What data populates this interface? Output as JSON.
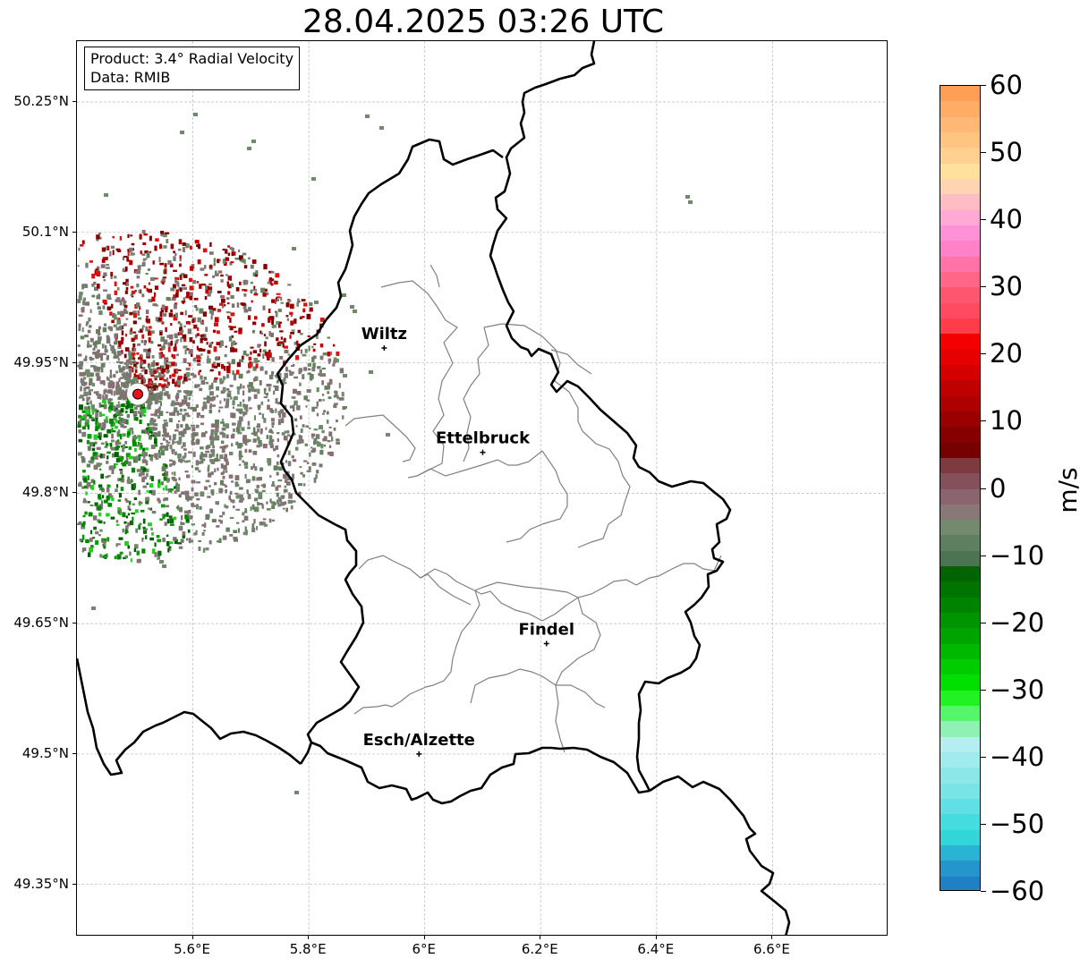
{
  "title": "28.04.2025 03:26 UTC",
  "info_box": {
    "product": "Product: 3.4° Radial Velocity",
    "data": "Data: RMIB"
  },
  "map": {
    "lat_labels": [
      "50.25°N",
      "50.1°N",
      "49.95°N",
      "49.8°N",
      "49.65°N",
      "49.5°N",
      "49.35°N"
    ],
    "lon_labels": [
      "5.6°E",
      "5.8°E",
      "6°E",
      "6.2°E",
      "6.4°E",
      "6.6°E"
    ],
    "cities": [
      {
        "name": "Wiltz",
        "lon": 5.93,
        "lat": 49.967
      },
      {
        "name": "Ettelbruck",
        "lon": 6.1,
        "lat": 49.847
      },
      {
        "name": "Findel",
        "lon": 6.21,
        "lat": 49.627
      },
      {
        "name": "Esch/Alzette",
        "lon": 5.99,
        "lat": 49.5
      }
    ],
    "radar_site": {
      "lon": 5.505,
      "lat": 49.914
    },
    "colors": {
      "national_border": "#000000",
      "canton_border": "#808080",
      "radar_marker": "#e8141b"
    }
  },
  "colorbar": {
    "unit": "m/s",
    "ticks": [
      "60",
      "50",
      "40",
      "30",
      "20",
      "10",
      "0",
      "−10",
      "−20",
      "−30",
      "−40",
      "−50",
      "−60"
    ],
    "min": -60,
    "max": 60,
    "colors_top_to_bottom": [
      "#ff9f55",
      "#ffac66",
      "#ffb775",
      "#ffc482",
      "#ffd08f",
      "#ffe09c",
      "#ffd4b0",
      "#ffbcc4",
      "#ffa9d4",
      "#ff92d6",
      "#ff82c8",
      "#ff73a6",
      "#ff6688",
      "#ff5670",
      "#ff4a60",
      "#ff3c4a",
      "#f50000",
      "#e60000",
      "#d40000",
      "#c00000",
      "#ad0000",
      "#9a0000",
      "#870000",
      "#770000",
      "#7e3a3e",
      "#85505a",
      "#8a646e",
      "#8a7878",
      "#738a6e",
      "#5f8060",
      "#4d7452",
      "#006400",
      "#007400",
      "#008400",
      "#009400",
      "#00a400",
      "#00b800",
      "#00cc00",
      "#00e000",
      "#22f222",
      "#55f66a",
      "#8ff2b4",
      "#b4eef0",
      "#a0ecec",
      "#8ce8e8",
      "#78e4e6",
      "#60e0e4",
      "#44dcde",
      "#30d6d8",
      "#28b4d2",
      "#2496cc",
      "#2080c6"
    ]
  }
}
